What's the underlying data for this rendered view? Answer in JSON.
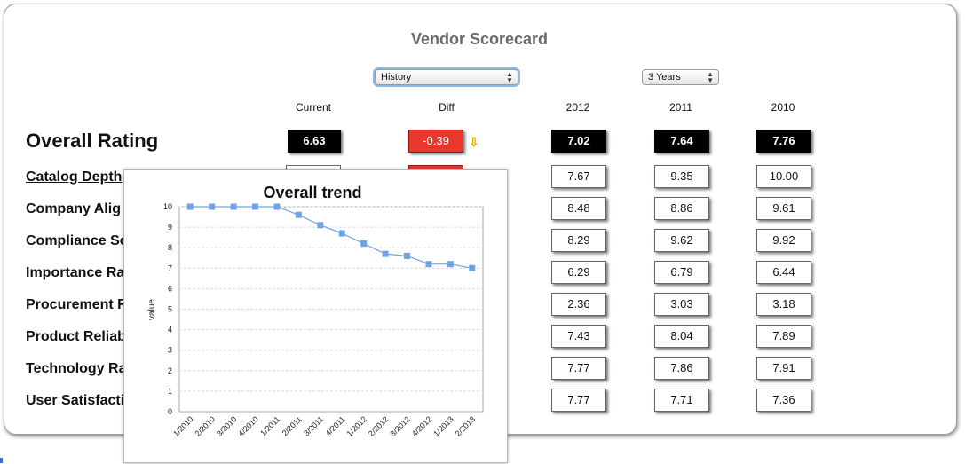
{
  "page": {
    "title": "Vendor Scorecard"
  },
  "controls": {
    "view_select": {
      "value": "History"
    },
    "range_select": {
      "value": "3 Years"
    }
  },
  "columns": [
    "Current",
    "Diff",
    "2012",
    "2011",
    "2010"
  ],
  "overall": {
    "label": "Overall Rating",
    "current": "6.63",
    "diff": "-0.39",
    "y2012": "7.02",
    "y2011": "7.64",
    "y2010": "7.76"
  },
  "rows": [
    {
      "label": "Catalog Depth",
      "y2012": "7.67",
      "y2011": "9.35",
      "y2010": "10.00"
    },
    {
      "label": "Company Alig",
      "y2012": "8.48",
      "y2011": "8.86",
      "y2010": "9.61"
    },
    {
      "label": "Compliance Sc",
      "y2012": "8.29",
      "y2011": "9.62",
      "y2010": "9.92"
    },
    {
      "label": "Importance Ra",
      "y2012": "6.29",
      "y2011": "6.79",
      "y2010": "6.44"
    },
    {
      "label": "Procurement R",
      "y2012": "2.36",
      "y2011": "3.03",
      "y2010": "3.18"
    },
    {
      "label": "Product Reliab",
      "y2012": "7.43",
      "y2011": "8.04",
      "y2010": "7.89"
    },
    {
      "label": "Technology Ra",
      "y2012": "7.77",
      "y2011": "7.86",
      "y2010": "7.91"
    },
    {
      "label": "User Satisfacti",
      "y2012": "7.77",
      "y2011": "7.71",
      "y2010": "7.36"
    }
  ],
  "colors": {
    "diff_negative": "#e8372c",
    "series": "#6fa3e8",
    "arrow": "#e0a800"
  },
  "icons": {
    "diff_indicator": "down-arrow-icon"
  },
  "chart_data": {
    "type": "line",
    "title": "Overall trend",
    "ylabel": "value",
    "xlabel": "",
    "ylim": [
      0,
      10
    ],
    "yticks": [
      "0",
      "1",
      "2",
      "3",
      "4",
      "5",
      "6",
      "7",
      "8",
      "9",
      "10"
    ],
    "categories": [
      "1/2010",
      "2/2010",
      "3/2010",
      "4/2010",
      "1/2011",
      "2/2011",
      "3/2011",
      "4/2011",
      "1/2012",
      "2/2012",
      "3/2012",
      "4/2012",
      "1/2013",
      "2/2013"
    ],
    "values": [
      10,
      10,
      10,
      10,
      10,
      9.6,
      9.1,
      8.7,
      8.2,
      7.7,
      7.6,
      7.2,
      7.2,
      7.0
    ],
    "grid": true
  }
}
